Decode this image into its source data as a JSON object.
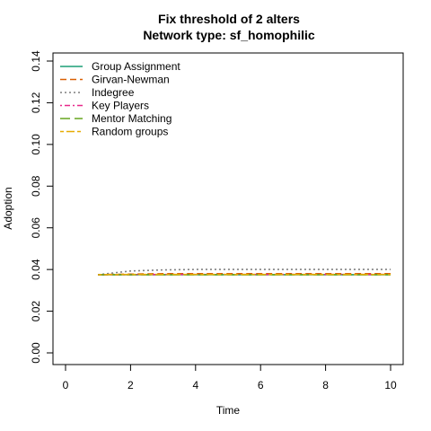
{
  "chart_data": {
    "type": "line",
    "title": "Fix threshold of 2 alters",
    "subtitle": "Network type: sf_homophilic",
    "xlabel": "Time",
    "ylabel": "Adoption",
    "xlim": [
      0,
      10
    ],
    "ylim": [
      0,
      0.14
    ],
    "xticks": [
      "0",
      "2",
      "4",
      "6",
      "8",
      "10"
    ],
    "yticks": [
      "0.00",
      "0.02",
      "0.04",
      "0.06",
      "0.08",
      "0.10",
      "0.12",
      "0.14"
    ],
    "grid": false,
    "legend_position": "top-left",
    "x": [
      1,
      2,
      3,
      4,
      5,
      6,
      7,
      8,
      9,
      10
    ],
    "series": [
      {
        "name": "Group Assignment",
        "color": "#1b9e77",
        "dash": "solid",
        "values": [
          0.0375,
          0.0375,
          0.0375,
          0.0375,
          0.0375,
          0.0375,
          0.0375,
          0.0375,
          0.0375,
          0.0375
        ]
      },
      {
        "name": "Girvan-Newman",
        "color": "#d95f02",
        "dash": "dashed",
        "values": [
          0.0375,
          0.0378,
          0.038,
          0.038,
          0.038,
          0.038,
          0.038,
          0.038,
          0.038,
          0.038
        ]
      },
      {
        "name": "Indegree",
        "color": "#7f7f7f",
        "dash": "dotted",
        "values": [
          0.0375,
          0.0393,
          0.0398,
          0.04,
          0.04,
          0.04,
          0.04,
          0.04,
          0.04,
          0.04
        ]
      },
      {
        "name": "Key Players",
        "color": "#e7298a",
        "dash": "dashdot",
        "values": [
          0.0375,
          0.0375,
          0.0376,
          0.0376,
          0.0376,
          0.0376,
          0.0376,
          0.0376,
          0.0376,
          0.0376
        ]
      },
      {
        "name": "Mentor Matching",
        "color": "#66a61e",
        "dash": "longdash",
        "values": [
          0.0375,
          0.0375,
          0.0375,
          0.0375,
          0.0375,
          0.0375,
          0.0375,
          0.0375,
          0.0375,
          0.0375
        ]
      },
      {
        "name": "Random groups",
        "color": "#e6ab02",
        "dash": "twodash",
        "values": [
          0.0375,
          0.0376,
          0.0376,
          0.0376,
          0.0376,
          0.0376,
          0.0376,
          0.0376,
          0.0376,
          0.0376
        ]
      }
    ]
  }
}
